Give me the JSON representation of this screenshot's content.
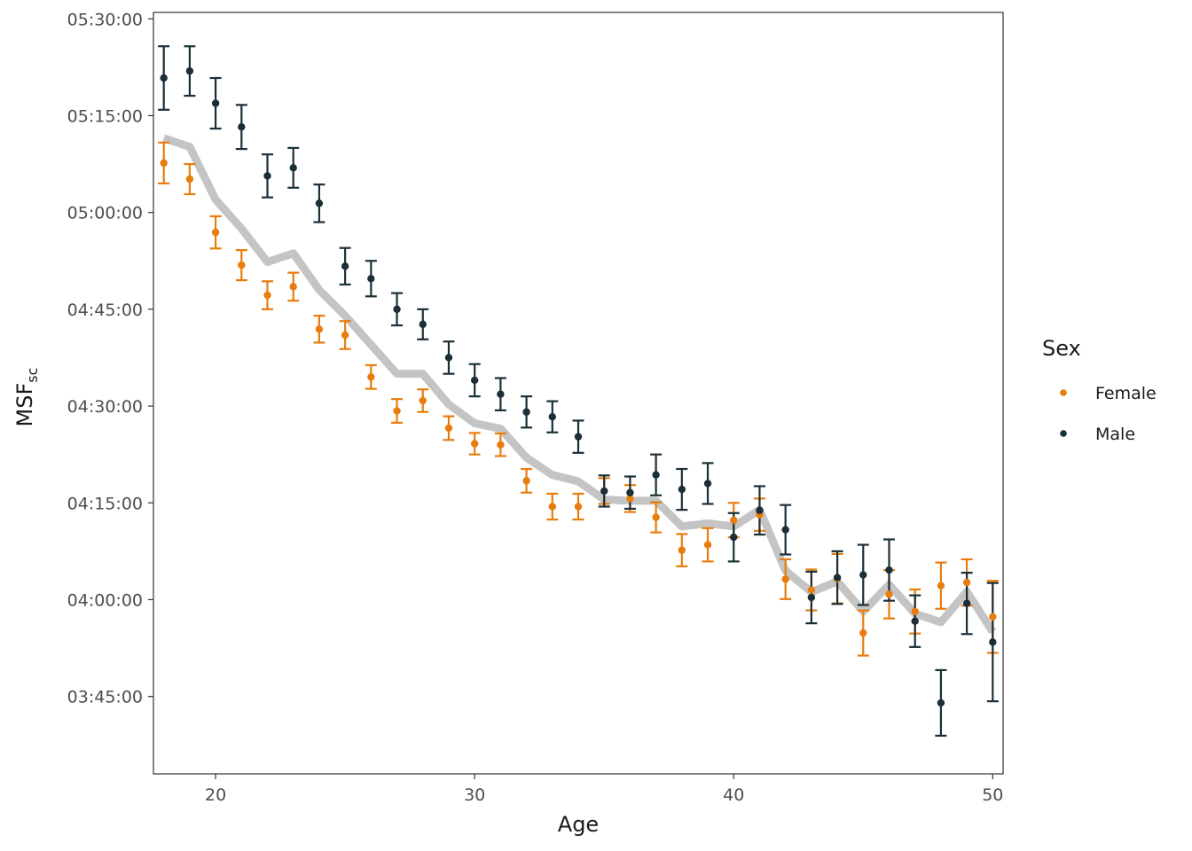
{
  "chart_data": {
    "type": "scatter",
    "xlabel": "Age",
    "ylabel": {
      "main": "MSF",
      "sub": "sc"
    },
    "xlim": [
      17.6,
      50.4
    ],
    "ylim": [
      "03:33:00",
      "05:31:00"
    ],
    "x_ticks": [
      20,
      30,
      40,
      50
    ],
    "y_ticks": [
      "03:45:00",
      "04:00:00",
      "04:15:00",
      "04:30:00",
      "04:45:00",
      "05:00:00",
      "05:15:00",
      "05:30:00"
    ],
    "grid": false,
    "legend": {
      "title": "Sex",
      "position": "right"
    },
    "colors": {
      "Female": "#e87d0e",
      "Male": "#1b2f38",
      "trend": "#c4c4c4",
      "panel_border": "#333333"
    },
    "series": [
      {
        "name": "Female",
        "x": [
          18,
          19,
          20,
          21,
          22,
          23,
          24,
          25,
          26,
          27,
          28,
          29,
          30,
          31,
          32,
          33,
          34,
          35,
          36,
          37,
          38,
          39,
          40,
          41,
          42,
          43,
          44,
          45,
          46,
          47,
          48,
          49,
          50
        ],
        "y": [
          "05:07:40",
          "05:05:10",
          "04:56:55",
          "04:51:50",
          "04:47:10",
          "04:48:30",
          "04:41:55",
          "04:41:00",
          "04:34:30",
          "04:29:15",
          "04:30:50",
          "04:26:35",
          "04:24:10",
          "04:24:00",
          "04:18:25",
          "04:14:25",
          "04:14:25",
          "04:16:50",
          "04:15:40",
          "04:12:45",
          "04:07:40",
          "04:08:30",
          "04:12:20",
          "04:13:10",
          "04:03:10",
          "04:01:30",
          "04:03:15",
          "03:54:50",
          "04:00:50",
          "03:58:10",
          "04:02:10",
          "04:02:40",
          "03:57:20"
        ],
        "lower": [
          "05:04:30",
          "05:02:50",
          "04:54:25",
          "04:49:30",
          "04:45:00",
          "04:46:20",
          "04:39:50",
          "04:38:50",
          "04:32:40",
          "04:27:25",
          "04:29:05",
          "04:24:45",
          "04:22:30",
          "04:22:15",
          "04:16:35",
          "04:12:25",
          "04:12:25",
          "04:14:50",
          "04:13:35",
          "04:10:25",
          "04:05:10",
          "04:05:55",
          "04:09:40",
          "04:10:40",
          "04:00:05",
          "03:58:20",
          "03:59:25",
          "03:51:20",
          "03:57:05",
          "03:54:45",
          "03:58:35",
          "03:59:05",
          "03:51:45"
        ],
        "upper": [
          "05:10:50",
          "05:07:30",
          "04:59:25",
          "04:54:10",
          "04:49:20",
          "04:50:40",
          "04:44:00",
          "04:43:10",
          "04:36:20",
          "04:31:05",
          "04:32:35",
          "04:28:25",
          "04:25:50",
          "04:25:45",
          "04:20:15",
          "04:16:25",
          "04:16:25",
          "04:18:50",
          "04:17:45",
          "04:15:05",
          "04:10:10",
          "04:11:05",
          "04:15:00",
          "04:15:40",
          "04:06:15",
          "04:04:40",
          "04:07:05",
          "03:58:20",
          "04:04:35",
          "04:01:35",
          "04:05:45",
          "04:06:15",
          "04:02:55"
        ]
      },
      {
        "name": "Male",
        "x": [
          18,
          19,
          20,
          21,
          22,
          23,
          24,
          25,
          26,
          27,
          28,
          29,
          30,
          31,
          32,
          33,
          34,
          35,
          36,
          37,
          38,
          39,
          40,
          41,
          42,
          43,
          44,
          45,
          46,
          47,
          48,
          49,
          50
        ],
        "y": [
          "05:20:50",
          "05:21:55",
          "05:16:55",
          "05:13:15",
          "05:05:40",
          "05:06:55",
          "05:01:25",
          "04:51:40",
          "04:49:45",
          "04:45:00",
          "04:42:40",
          "04:37:30",
          "04:34:00",
          "04:31:50",
          "04:29:05",
          "04:28:20",
          "04:25:15",
          "04:16:50",
          "04:16:35",
          "04:19:20",
          "04:17:05",
          "04:18:00",
          "04:09:40",
          "04:13:50",
          "04:10:50",
          "04:00:20",
          "04:03:25",
          "04:03:50",
          "04:04:35",
          "03:56:40",
          "03:44:00",
          "03:59:25",
          "03:53:25"
        ],
        "lower": [
          "05:15:55",
          "05:18:05",
          "05:13:00",
          "05:09:50",
          "05:02:20",
          "05:03:50",
          "04:58:30",
          "04:48:50",
          "04:47:00",
          "04:42:30",
          "04:40:20",
          "04:35:00",
          "04:31:30",
          "04:29:20",
          "04:26:40",
          "04:25:55",
          "04:22:45",
          "04:14:25",
          "04:14:05",
          "04:16:10",
          "04:13:55",
          "04:14:50",
          "04:05:55",
          "04:10:05",
          "04:07:00",
          "03:56:20",
          "03:59:20",
          "03:59:10",
          "03:59:50",
          "03:52:40",
          "03:38:55",
          "03:54:40",
          "03:44:15"
        ],
        "upper": [
          "05:25:45",
          "05:25:45",
          "05:20:50",
          "05:16:40",
          "05:09:00",
          "05:10:00",
          "05:04:20",
          "04:54:30",
          "04:52:30",
          "04:47:30",
          "04:45:00",
          "04:40:00",
          "04:36:30",
          "04:34:20",
          "04:31:30",
          "04:30:45",
          "04:27:45",
          "04:19:15",
          "04:19:05",
          "04:22:30",
          "04:20:15",
          "04:21:10",
          "04:13:25",
          "04:17:35",
          "04:14:40",
          "04:04:20",
          "04:07:30",
          "04:08:30",
          "04:09:20",
          "04:00:40",
          "03:49:05",
          "04:04:10",
          "04:02:35"
        ]
      },
      {
        "name": "",
        "type": "line",
        "x": [
          18,
          19,
          20,
          21,
          22,
          23,
          24,
          25,
          26,
          27,
          28,
          29,
          30,
          31,
          32,
          33,
          34,
          35,
          36,
          37,
          38,
          39,
          40,
          41,
          42,
          43,
          44,
          45,
          46,
          47,
          48,
          49,
          50
        ],
        "y": [
          "05:11:30",
          "05:10:10",
          "05:02:00",
          "04:57:30",
          "04:52:20",
          "04:53:40",
          "04:48:00",
          "04:44:00",
          "04:39:30",
          "04:35:00",
          "04:35:00",
          "04:30:15",
          "04:27:20",
          "04:26:30",
          "04:22:00",
          "04:19:20",
          "04:18:20",
          "04:15:30",
          "04:15:20",
          "04:15:20",
          "04:11:20",
          "04:11:50",
          "04:11:20",
          "04:13:55",
          "04:04:30",
          "04:01:10",
          "04:02:50",
          "03:58:10",
          "04:02:20",
          "03:57:50",
          "03:56:30",
          "04:01:15",
          "03:55:00"
        ]
      }
    ]
  }
}
